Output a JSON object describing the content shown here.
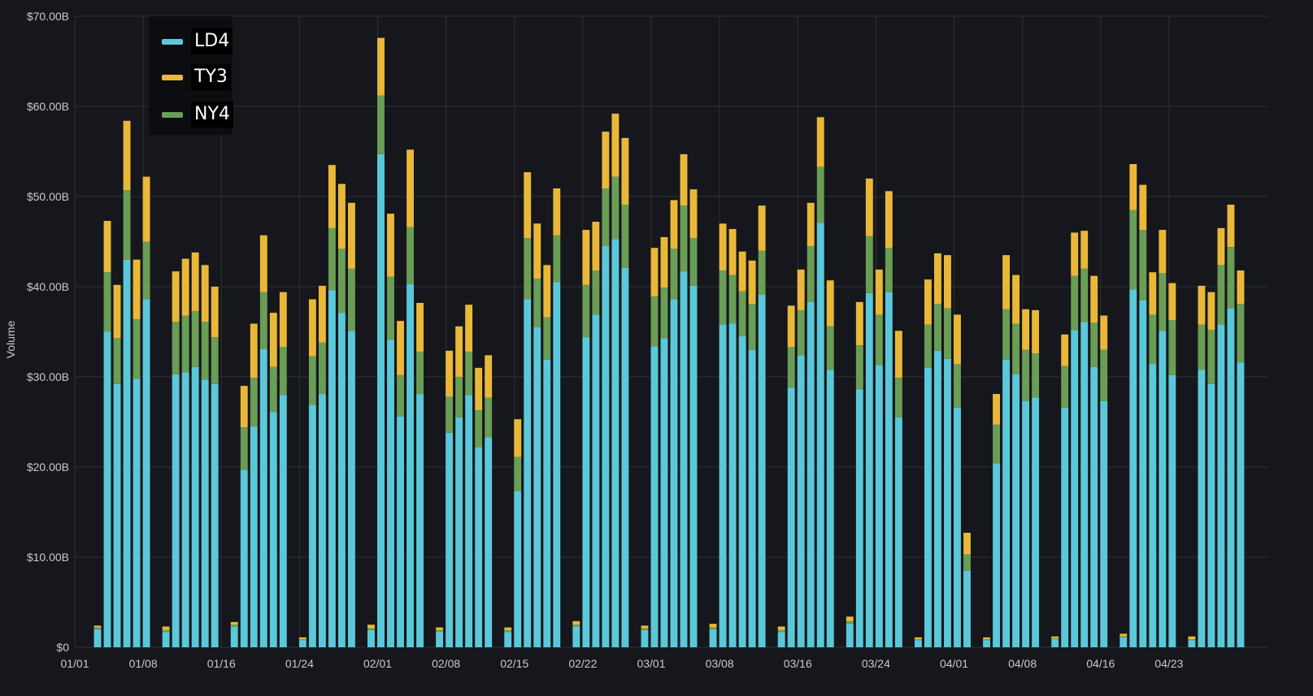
{
  "colors": {
    "background": "#16171c",
    "grid": "#2e3036",
    "LD4": "#5bc8da",
    "TY3": "#eab839",
    "NY4": "#6a9d55"
  },
  "chart_data": {
    "type": "bar",
    "stacked": true,
    "title": "",
    "xlabel": "",
    "ylabel": "Volume",
    "ylim": [
      0,
      70
    ],
    "unit": "billions",
    "y_ticks": [
      "$0",
      "$10.00B",
      "$20.00B",
      "$30.00B",
      "$40.00B",
      "$50.00B",
      "$60.00B",
      "$70.00B"
    ],
    "x_tick_labels": [
      "01/01",
      "01/08",
      "01/16",
      "01/24",
      "02/01",
      "02/08",
      "02/15",
      "02/22",
      "03/01",
      "03/08",
      "03/16",
      "03/24",
      "04/01",
      "04/08",
      "04/16",
      "04/23"
    ],
    "legend_position": "top-left",
    "grid": true,
    "series": [
      {
        "name": "LD4",
        "values": [
          2.0,
          35.0,
          29.2,
          43.0,
          29.8,
          38.6,
          1.7,
          30.3,
          30.5,
          31.1,
          29.7,
          29.2,
          2.3,
          19.7,
          24.5,
          33.1,
          26.1,
          28.0,
          0.8,
          26.9,
          28.1,
          39.6,
          37.1,
          35.1,
          1.9,
          54.7,
          34.1,
          25.6,
          40.3,
          28.1,
          1.7,
          23.8,
          25.5,
          28.0,
          22.2,
          23.3,
          1.7,
          17.3,
          38.6,
          35.5,
          31.9,
          40.5,
          2.3,
          34.4,
          36.9,
          44.5,
          45.3,
          42.1,
          1.9,
          33.4,
          34.3,
          38.6,
          41.7,
          40.1,
          2.0,
          35.8,
          35.9,
          34.5,
          33.0,
          39.1,
          1.7,
          28.8,
          32.4,
          38.3,
          47.1,
          30.8,
          2.6,
          28.6,
          39.3,
          31.3,
          39.4,
          25.5,
          0.8,
          31.0,
          32.9,
          32.0,
          26.6,
          8.5,
          0.8,
          20.4,
          31.9,
          30.3,
          27.3,
          27.7,
          0.9,
          26.6,
          35.2,
          36.1,
          31.1,
          27.3,
          1.1,
          39.7,
          38.5,
          31.4,
          35.1,
          30.2,
          0.8,
          30.8,
          29.2,
          35.8,
          37.6,
          31.6
        ]
      },
      {
        "name": "NY4",
        "values": [
          0.2,
          6.6,
          5.1,
          7.7,
          6.6,
          6.4,
          0.2,
          5.8,
          6.3,
          6.2,
          6.4,
          5.2,
          0.2,
          4.7,
          5.4,
          6.3,
          5.0,
          5.3,
          0.1,
          5.4,
          5.7,
          6.9,
          7.1,
          6.9,
          0.2,
          6.5,
          7.0,
          4.6,
          6.3,
          4.7,
          0.2,
          4.0,
          4.5,
          4.8,
          4.1,
          4.4,
          0.2,
          3.8,
          6.8,
          5.4,
          4.7,
          5.2,
          0.2,
          5.8,
          4.9,
          6.4,
          6.9,
          7.0,
          0.2,
          5.5,
          5.6,
          5.6,
          7.3,
          5.3,
          0.2,
          6.0,
          5.4,
          5.0,
          5.1,
          4.9,
          0.2,
          4.5,
          5.0,
          6.2,
          6.2,
          4.8,
          0.3,
          4.9,
          6.3,
          5.6,
          4.9,
          4.4,
          0.1,
          4.8,
          5.2,
          5.6,
          4.8,
          1.8,
          0.1,
          4.3,
          5.6,
          5.6,
          5.7,
          4.9,
          0.1,
          4.6,
          6.0,
          5.9,
          4.9,
          5.7,
          0.1,
          8.8,
          7.8,
          5.5,
          6.4,
          6.1,
          0.1,
          5.0,
          6.0,
          6.6,
          6.8,
          6.5
        ]
      },
      {
        "name": "TY3",
        "values": [
          0.2,
          5.7,
          5.9,
          7.7,
          6.6,
          7.2,
          0.4,
          5.6,
          6.3,
          6.5,
          6.3,
          5.6,
          0.3,
          4.6,
          6.0,
          6.3,
          6.0,
          6.1,
          0.2,
          6.3,
          6.3,
          7.0,
          7.2,
          7.3,
          0.4,
          6.4,
          7.0,
          6.0,
          8.6,
          5.4,
          0.3,
          5.1,
          5.6,
          5.2,
          4.7,
          4.7,
          0.3,
          4.2,
          7.3,
          6.1,
          5.8,
          5.2,
          0.4,
          6.1,
          5.4,
          6.3,
          7.0,
          7.4,
          0.3,
          5.4,
          5.6,
          5.4,
          5.7,
          5.4,
          0.4,
          5.2,
          5.1,
          4.4,
          4.8,
          5.0,
          0.4,
          4.6,
          4.5,
          4.8,
          5.5,
          5.1,
          0.5,
          4.8,
          6.4,
          5.0,
          6.3,
          5.2,
          0.2,
          5.0,
          5.6,
          5.9,
          5.5,
          2.4,
          0.2,
          3.4,
          6.0,
          5.4,
          4.5,
          4.8,
          0.2,
          3.5,
          4.8,
          4.2,
          5.2,
          3.8,
          0.3,
          5.1,
          5.0,
          4.7,
          4.8,
          4.1,
          0.3,
          4.3,
          4.2,
          4.1,
          4.7,
          3.7
        ]
      }
    ]
  }
}
